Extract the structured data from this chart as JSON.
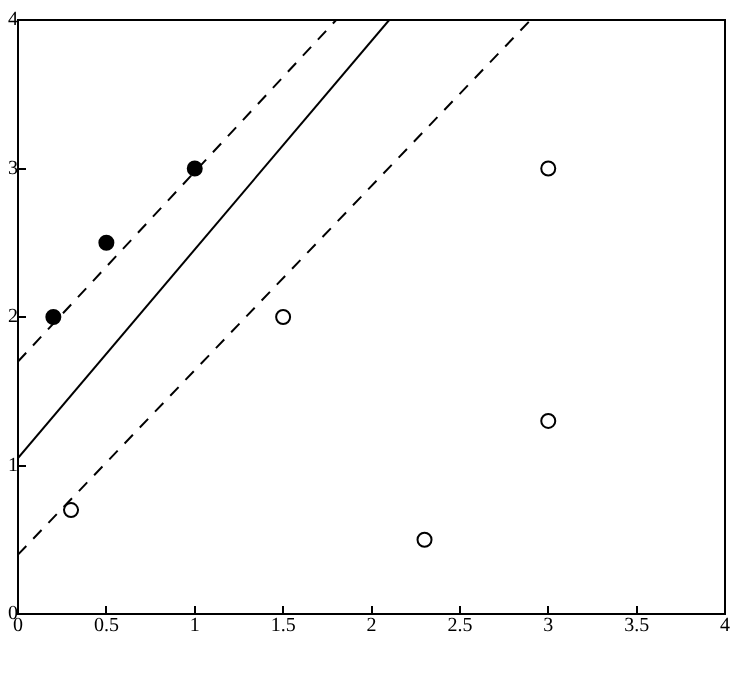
{
  "chart_data": {
    "type": "scatter",
    "xlim": [
      0,
      4
    ],
    "ylim": [
      0,
      4
    ],
    "xticks": [
      0,
      0.5,
      1,
      1.5,
      2,
      2.5,
      3,
      3.5,
      4
    ],
    "yticks": [
      0,
      1,
      2,
      3,
      4
    ],
    "grid": false,
    "legend": false,
    "marker": "circle",
    "series": [
      {
        "type": "scatter",
        "color": "#000000",
        "x": [
          0.2,
          0.5,
          1
        ],
        "values": [
          2,
          2.5,
          3
        ]
      },
      {
        "type": "scatter",
        "color": "#000000",
        "x": [
          0.3,
          1.5,
          2.3,
          3,
          3
        ],
        "values": [
          0.7,
          2,
          0.5,
          3,
          1.3
        ]
      },
      {
        "type": "line",
        "color": "#000000",
        "line_style": "dashed",
        "marker": "none",
        "x": [
          0,
          1.8
        ],
        "values": [
          1.7,
          4
        ]
      },
      {
        "type": "line",
        "color": "#000000",
        "line_style": "solid",
        "marker": "none",
        "x": [
          0,
          2.1
        ],
        "values": [
          1.05,
          4
        ]
      },
      {
        "type": "line",
        "color": "#000000",
        "line_style": "dashed",
        "marker": "none",
        "x": [
          0,
          2.9
        ],
        "values": [
          0.4,
          4
        ]
      }
    ]
  }
}
